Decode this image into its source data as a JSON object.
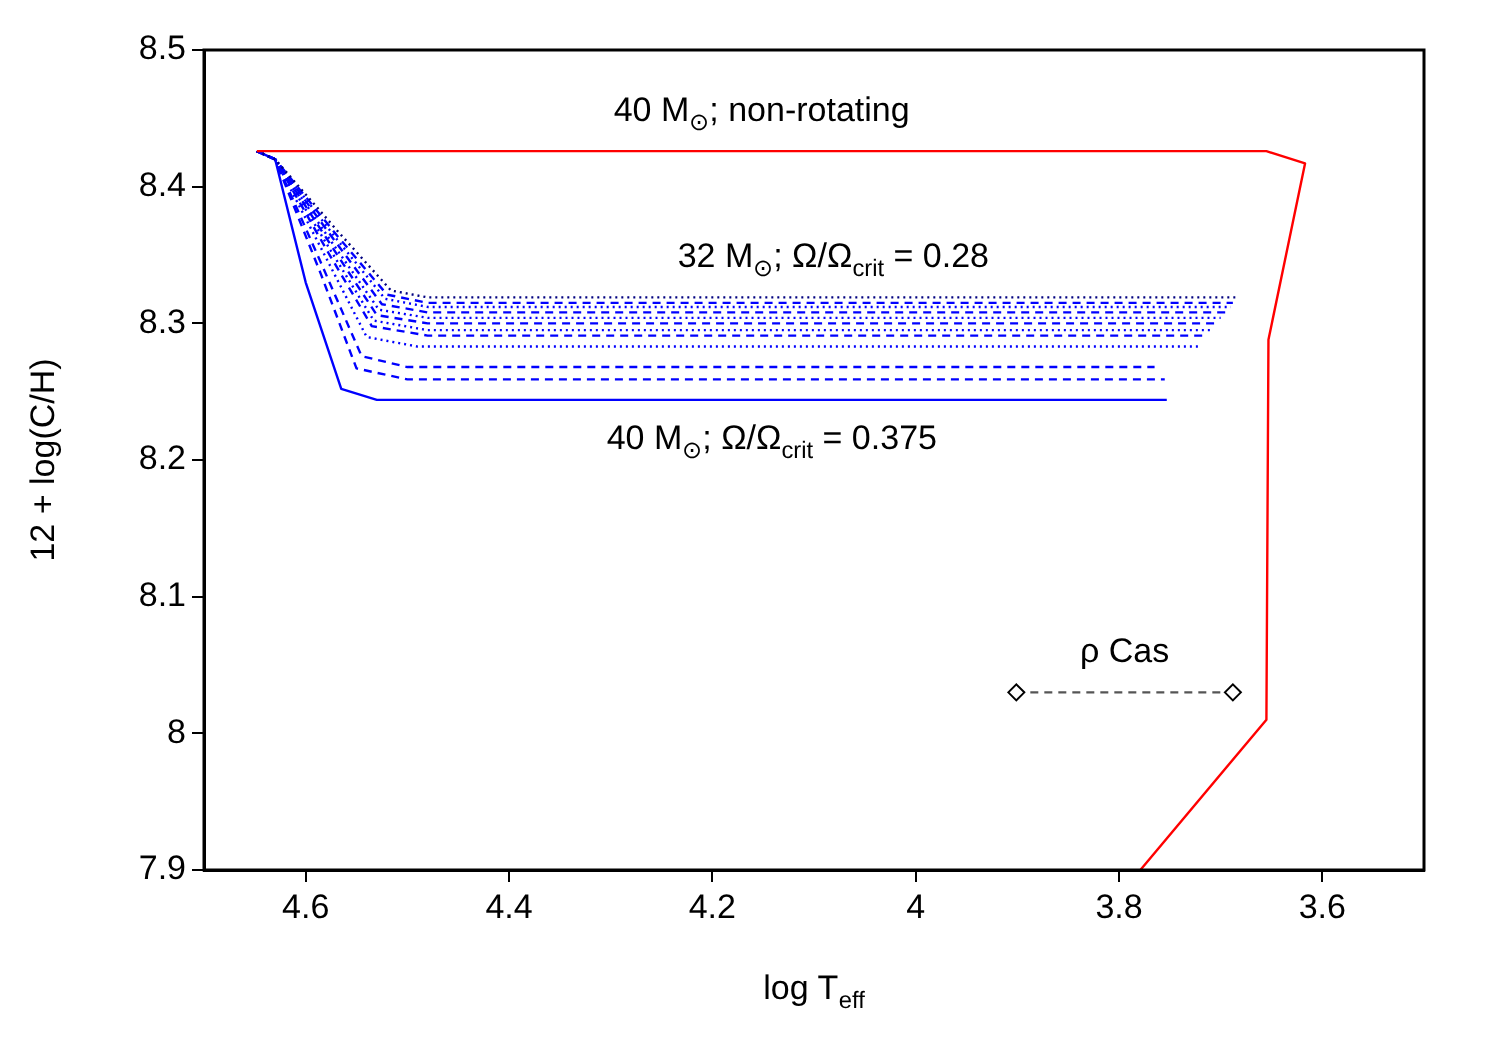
{
  "chart_data": {
    "type": "line",
    "xlabel": "log T$_{eff}$",
    "ylabel": "12 + log(C/H)",
    "xlim": [
      4.7,
      3.5
    ],
    "xticks": [
      4.6,
      4.4,
      4.2,
      4,
      3.8,
      3.6
    ],
    "ylim": [
      7.9,
      8.5
    ],
    "yticks": [
      7.9,
      8,
      8.1,
      8.2,
      8.3,
      8.4,
      8.5
    ],
    "grid": false,
    "legend": false,
    "marker": "none",
    "series": [
      {
        "name": "40 M$_{⊙}$; non-rotating",
        "color": "#ff0000",
        "line_style": "solid",
        "x": [
          4.648,
          3.655,
          3.617,
          3.653,
          3.655,
          3.779
        ],
        "values": [
          8.426,
          8.426,
          8.417,
          8.288,
          8.01,
          7.9
        ]
      },
      {
        "name": "32 M$_{⊙}$; Ω/Ω$_{crit}$ = 0.28",
        "color": "#000080",
        "line_style": "dotted",
        "x": [
          4.648,
          4.63,
          4.568,
          4.516,
          4.48,
          3.682
        ],
        "values": [
          8.426,
          8.42,
          8.367,
          8.324,
          8.319,
          8.319
        ]
      },
      {
        "color": "#0000ff",
        "line_style": "dashed",
        "x": [
          4.648,
          4.63,
          4.57,
          4.52,
          4.48,
          3.688
        ],
        "values": [
          8.426,
          8.42,
          8.365,
          8.321,
          8.315,
          8.315
        ]
      },
      {
        "color": "#0000ff",
        "line_style": "dotted",
        "x": [
          4.648,
          4.63,
          4.571,
          4.522,
          4.48,
          3.69
        ],
        "values": [
          8.426,
          8.42,
          8.363,
          8.318,
          8.312,
          8.312
        ]
      },
      {
        "color": "#0000ff",
        "line_style": "dashed",
        "x": [
          4.648,
          4.63,
          4.572,
          4.525,
          4.48,
          3.694
        ],
        "values": [
          8.426,
          8.42,
          8.361,
          8.314,
          8.308,
          8.308
        ]
      },
      {
        "color": "#0000ff",
        "line_style": "dotted",
        "x": [
          4.648,
          4.63,
          4.574,
          4.528,
          4.48,
          3.7
        ],
        "values": [
          8.426,
          8.42,
          8.359,
          8.31,
          8.304,
          8.304
        ]
      },
      {
        "color": "#0000ff",
        "line_style": "dashed",
        "x": [
          4.648,
          4.63,
          4.575,
          4.53,
          4.48,
          3.705
        ],
        "values": [
          8.426,
          8.42,
          8.357,
          8.306,
          8.3,
          8.3
        ]
      },
      {
        "color": "#0000ff",
        "line_style": "dotted",
        "x": [
          4.648,
          4.63,
          4.576,
          4.533,
          4.48,
          3.71
        ],
        "values": [
          8.426,
          8.42,
          8.354,
          8.302,
          8.295,
          8.295
        ]
      },
      {
        "color": "#0000ff",
        "line_style": "dashed",
        "x": [
          4.648,
          4.63,
          4.578,
          4.535,
          4.48,
          3.715
        ],
        "values": [
          8.426,
          8.42,
          8.352,
          8.298,
          8.291,
          8.291
        ]
      },
      {
        "color": "#0000ff",
        "line_style": "dotted",
        "x": [
          4.648,
          4.63,
          4.58,
          4.54,
          4.49,
          3.72
        ],
        "values": [
          8.426,
          8.42,
          8.348,
          8.29,
          8.283,
          8.283
        ]
      },
      {
        "color": "#0000ff",
        "line_style": "dashed",
        "x": [
          4.648,
          4.63,
          4.583,
          4.545,
          4.5,
          3.765
        ],
        "values": [
          8.426,
          8.42,
          8.341,
          8.276,
          8.268,
          8.268
        ]
      },
      {
        "color": "#0000ff",
        "line_style": "dashed",
        "x": [
          4.648,
          4.63,
          4.585,
          4.55,
          4.5,
          3.755
        ],
        "values": [
          8.426,
          8.42,
          8.336,
          8.267,
          8.259,
          8.259
        ]
      },
      {
        "name": "40 M$_{⊙}$; Ω/Ω$_{crit}$ = 0.375",
        "color": "#0000ff",
        "line_style": "solid",
        "x": [
          4.648,
          4.63,
          4.6,
          4.565,
          4.53,
          3.753
        ],
        "values": [
          8.426,
          8.42,
          8.33,
          8.252,
          8.244,
          8.244
        ]
      },
      {
        "name": "ρ Cas",
        "color": "#555555",
        "line_style": "dashed",
        "marker": "diamond",
        "x": [
          3.901,
          3.688
        ],
        "values": [
          8.03,
          8.03
        ]
      }
    ]
  }
}
